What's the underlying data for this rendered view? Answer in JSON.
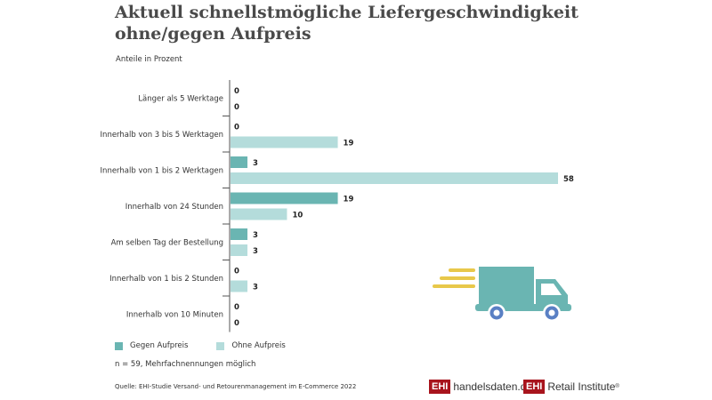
{
  "title": "Aktuell schnellstmögliche Liefergeschwindigkeit ohne/gegen Aufpreis",
  "title_line1": "Aktuell schnellstmögliche Liefergeschwindigkeit",
  "title_line2": "ohne/gegen Aufpreis",
  "subtitle": "Anteile in Prozent",
  "colors": {
    "gegen": "#6ab5b2",
    "ohne": "#b4dcdb",
    "axis": "#555555",
    "truck_body": "#6ab5b2",
    "truck_wheels": "#5a80c4",
    "speed_lines": "#e8c84a",
    "brand_red": "#a8141d"
  },
  "chart_data": {
    "type": "bar",
    "orientation": "horizontal",
    "title": "Aktuell schnellstmögliche Liefergeschwindigkeit ohne/gegen Aufpreis",
    "subtitle": "Anteile in Prozent",
    "xlabel": "",
    "ylabel": "",
    "xlim": [
      0,
      58
    ],
    "grid": false,
    "legend_position": "bottom-left",
    "categories": [
      "Länger als 5 Werktage",
      "Innerhalb von 3 bis 5 Werktagen",
      "Innerhalb von 1 bis 2 Werktagen",
      "Innerhalb von 24 Stunden",
      "Am selben Tag der Bestellung",
      "Innerhalb von 1 bis 2 Stunden",
      "Innerhalb von 10 Minuten"
    ],
    "series": [
      {
        "name": "Gegen Aufpreis",
        "values": [
          0,
          0,
          3,
          19,
          3,
          0,
          0
        ]
      },
      {
        "name": "Ohne Aufpreis",
        "values": [
          0,
          19,
          58,
          10,
          3,
          3,
          0
        ]
      }
    ]
  },
  "legend": {
    "gegen": "Gegen Aufpreis",
    "ohne": "Ohne Aufpreis"
  },
  "note": "n = 59, Mehrfachnennungen möglich",
  "source": "Quelle: EHI-Studie Versand- und Retourenmanagement im E-Commerce 2022",
  "logos": {
    "ehi_box": "EHI",
    "handelsdaten": "handelsdaten.de",
    "retail": "Retail Institute",
    "reg": "®"
  },
  "icons": {
    "truck": "delivery-truck-icon"
  }
}
